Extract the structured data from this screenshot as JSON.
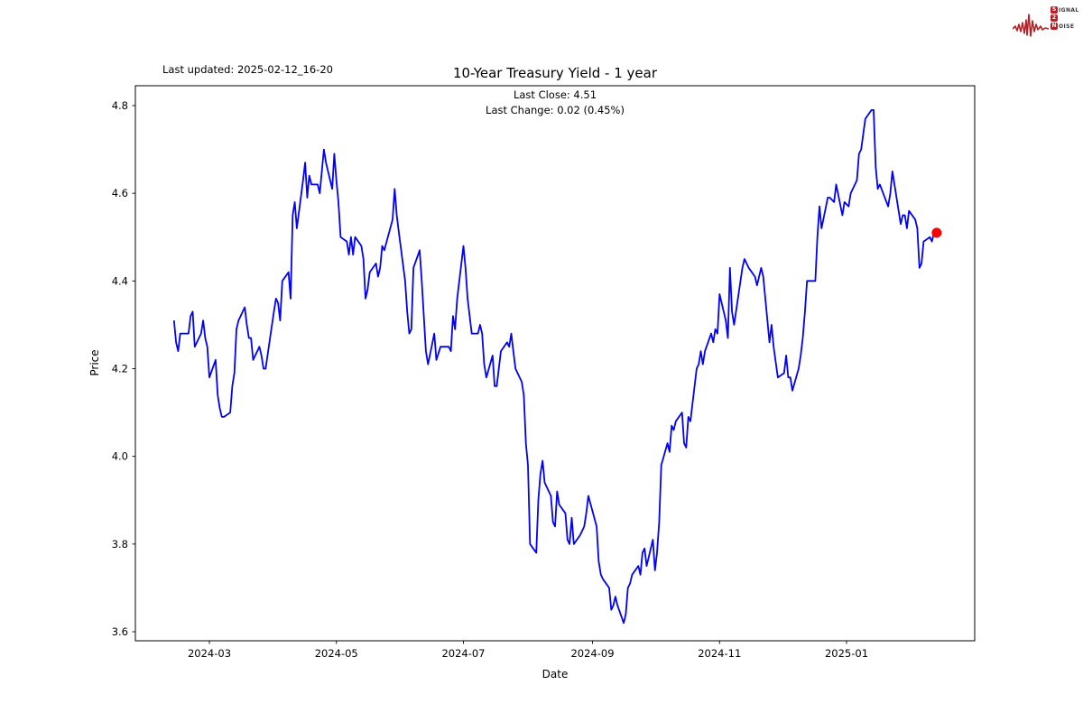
{
  "header": {
    "last_updated_label": "Last updated: 2025-02-12_16-20",
    "title": "10-Year Treasury Yield - 1 year",
    "subtitle_line1": "Last Close: 4.51",
    "subtitle_line2": "Last Change: 0.02 (0.45%)"
  },
  "logo": {
    "rows": [
      {
        "initial": "S",
        "rest": "IGNAL"
      },
      {
        "initial": "2",
        "rest": ""
      },
      {
        "initial": "N",
        "rest": "OISE"
      }
    ],
    "accent_color": "#b91f25"
  },
  "chart_data": {
    "type": "line",
    "title": "10-Year Treasury Yield - 1 year",
    "xlabel": "Date",
    "ylabel": "Price",
    "grid": false,
    "legend": "none",
    "ylim": [
      3.58,
      4.85
    ],
    "y_ticks": [
      3.6,
      3.8,
      4.0,
      4.2,
      4.4,
      4.6,
      4.8
    ],
    "x_ticks": [
      {
        "label": "2024-03",
        "date": "2024-03-01"
      },
      {
        "label": "2024-05",
        "date": "2024-05-01"
      },
      {
        "label": "2024-07",
        "date": "2024-07-01"
      },
      {
        "label": "2024-09",
        "date": "2024-09-01"
      },
      {
        "label": "2024-11",
        "date": "2024-11-01"
      },
      {
        "label": "2025-01",
        "date": "2025-01-01"
      }
    ],
    "line_color": "#0000ff",
    "last_point_color": "#ff0000",
    "last_close": 4.51,
    "last_change": "0.02 (0.45%)",
    "series": [
      {
        "name": "10-Year Treasury Yield",
        "points": [
          [
            "2024-02-13",
            4.31
          ],
          [
            "2024-02-14",
            4.26
          ],
          [
            "2024-02-15",
            4.24
          ],
          [
            "2024-02-16",
            4.28
          ],
          [
            "2024-02-20",
            4.28
          ],
          [
            "2024-02-21",
            4.32
          ],
          [
            "2024-02-22",
            4.33
          ],
          [
            "2024-02-23",
            4.25
          ],
          [
            "2024-02-26",
            4.28
          ],
          [
            "2024-02-27",
            4.31
          ],
          [
            "2024-02-28",
            4.27
          ],
          [
            "2024-02-29",
            4.25
          ],
          [
            "2024-03-01",
            4.18
          ],
          [
            "2024-03-04",
            4.22
          ],
          [
            "2024-03-05",
            4.14
          ],
          [
            "2024-03-06",
            4.11
          ],
          [
            "2024-03-07",
            4.09
          ],
          [
            "2024-03-08",
            4.09
          ],
          [
            "2024-03-11",
            4.1
          ],
          [
            "2024-03-12",
            4.16
          ],
          [
            "2024-03-13",
            4.19
          ],
          [
            "2024-03-14",
            4.29
          ],
          [
            "2024-03-15",
            4.31
          ],
          [
            "2024-03-18",
            4.34
          ],
          [
            "2024-03-19",
            4.3
          ],
          [
            "2024-03-20",
            4.27
          ],
          [
            "2024-03-21",
            4.27
          ],
          [
            "2024-03-22",
            4.22
          ],
          [
            "2024-03-25",
            4.25
          ],
          [
            "2024-03-26",
            4.23
          ],
          [
            "2024-03-27",
            4.2
          ],
          [
            "2024-03-28",
            4.2
          ],
          [
            "2024-04-01",
            4.33
          ],
          [
            "2024-04-02",
            4.36
          ],
          [
            "2024-04-03",
            4.35
          ],
          [
            "2024-04-04",
            4.31
          ],
          [
            "2024-04-05",
            4.4
          ],
          [
            "2024-04-08",
            4.42
          ],
          [
            "2024-04-09",
            4.36
          ],
          [
            "2024-04-10",
            4.55
          ],
          [
            "2024-04-11",
            4.58
          ],
          [
            "2024-04-12",
            4.52
          ],
          [
            "2024-04-15",
            4.63
          ],
          [
            "2024-04-16",
            4.67
          ],
          [
            "2024-04-17",
            4.59
          ],
          [
            "2024-04-18",
            4.64
          ],
          [
            "2024-04-19",
            4.62
          ],
          [
            "2024-04-22",
            4.62
          ],
          [
            "2024-04-23",
            4.6
          ],
          [
            "2024-04-24",
            4.65
          ],
          [
            "2024-04-25",
            4.7
          ],
          [
            "2024-04-26",
            4.67
          ],
          [
            "2024-04-29",
            4.61
          ],
          [
            "2024-04-30",
            4.69
          ],
          [
            "2024-05-01",
            4.63
          ],
          [
            "2024-05-02",
            4.58
          ],
          [
            "2024-05-03",
            4.5
          ],
          [
            "2024-05-06",
            4.49
          ],
          [
            "2024-05-07",
            4.46
          ],
          [
            "2024-05-08",
            4.5
          ],
          [
            "2024-05-09",
            4.46
          ],
          [
            "2024-05-10",
            4.5
          ],
          [
            "2024-05-13",
            4.48
          ],
          [
            "2024-05-14",
            4.45
          ],
          [
            "2024-05-15",
            4.36
          ],
          [
            "2024-05-16",
            4.38
          ],
          [
            "2024-05-17",
            4.42
          ],
          [
            "2024-05-20",
            4.44
          ],
          [
            "2024-05-21",
            4.41
          ],
          [
            "2024-05-22",
            4.43
          ],
          [
            "2024-05-23",
            4.48
          ],
          [
            "2024-05-24",
            4.47
          ],
          [
            "2024-05-28",
            4.54
          ],
          [
            "2024-05-29",
            4.61
          ],
          [
            "2024-05-30",
            4.55
          ],
          [
            "2024-05-31",
            4.51
          ],
          [
            "2024-06-03",
            4.4
          ],
          [
            "2024-06-04",
            4.33
          ],
          [
            "2024-06-05",
            4.28
          ],
          [
            "2024-06-06",
            4.29
          ],
          [
            "2024-06-07",
            4.43
          ],
          [
            "2024-06-10",
            4.47
          ],
          [
            "2024-06-11",
            4.4
          ],
          [
            "2024-06-12",
            4.32
          ],
          [
            "2024-06-13",
            4.24
          ],
          [
            "2024-06-14",
            4.21
          ],
          [
            "2024-06-17",
            4.28
          ],
          [
            "2024-06-18",
            4.22
          ],
          [
            "2024-06-20",
            4.25
          ],
          [
            "2024-06-21",
            4.25
          ],
          [
            "2024-06-24",
            4.25
          ],
          [
            "2024-06-25",
            4.24
          ],
          [
            "2024-06-26",
            4.32
          ],
          [
            "2024-06-27",
            4.29
          ],
          [
            "2024-06-28",
            4.36
          ],
          [
            "2024-07-01",
            4.48
          ],
          [
            "2024-07-02",
            4.43
          ],
          [
            "2024-07-03",
            4.36
          ],
          [
            "2024-07-05",
            4.28
          ],
          [
            "2024-07-08",
            4.28
          ],
          [
            "2024-07-09",
            4.3
          ],
          [
            "2024-07-10",
            4.28
          ],
          [
            "2024-07-11",
            4.21
          ],
          [
            "2024-07-12",
            4.18
          ],
          [
            "2024-07-15",
            4.23
          ],
          [
            "2024-07-16",
            4.16
          ],
          [
            "2024-07-17",
            4.16
          ],
          [
            "2024-07-18",
            4.2
          ],
          [
            "2024-07-19",
            4.24
          ],
          [
            "2024-07-22",
            4.26
          ],
          [
            "2024-07-23",
            4.25
          ],
          [
            "2024-07-24",
            4.28
          ],
          [
            "2024-07-25",
            4.24
          ],
          [
            "2024-07-26",
            4.2
          ],
          [
            "2024-07-29",
            4.17
          ],
          [
            "2024-07-30",
            4.14
          ],
          [
            "2024-07-31",
            4.03
          ],
          [
            "2024-08-01",
            3.98
          ],
          [
            "2024-08-02",
            3.8
          ],
          [
            "2024-08-05",
            3.78
          ],
          [
            "2024-08-06",
            3.9
          ],
          [
            "2024-08-07",
            3.96
          ],
          [
            "2024-08-08",
            3.99
          ],
          [
            "2024-08-09",
            3.94
          ],
          [
            "2024-08-12",
            3.91
          ],
          [
            "2024-08-13",
            3.85
          ],
          [
            "2024-08-14",
            3.84
          ],
          [
            "2024-08-15",
            3.92
          ],
          [
            "2024-08-16",
            3.89
          ],
          [
            "2024-08-19",
            3.87
          ],
          [
            "2024-08-20",
            3.81
          ],
          [
            "2024-08-21",
            3.8
          ],
          [
            "2024-08-22",
            3.86
          ],
          [
            "2024-08-23",
            3.8
          ],
          [
            "2024-08-26",
            3.82
          ],
          [
            "2024-08-27",
            3.83
          ],
          [
            "2024-08-28",
            3.84
          ],
          [
            "2024-08-29",
            3.87
          ],
          [
            "2024-08-30",
            3.91
          ],
          [
            "2024-09-03",
            3.84
          ],
          [
            "2024-09-04",
            3.76
          ],
          [
            "2024-09-05",
            3.73
          ],
          [
            "2024-09-06",
            3.72
          ],
          [
            "2024-09-09",
            3.7
          ],
          [
            "2024-09-10",
            3.65
          ],
          [
            "2024-09-11",
            3.66
          ],
          [
            "2024-09-12",
            3.68
          ],
          [
            "2024-09-13",
            3.66
          ],
          [
            "2024-09-16",
            3.62
          ],
          [
            "2024-09-17",
            3.64
          ],
          [
            "2024-09-18",
            3.7
          ],
          [
            "2024-09-19",
            3.71
          ],
          [
            "2024-09-20",
            3.73
          ],
          [
            "2024-09-23",
            3.75
          ],
          [
            "2024-09-24",
            3.73
          ],
          [
            "2024-09-25",
            3.78
          ],
          [
            "2024-09-26",
            3.79
          ],
          [
            "2024-09-27",
            3.75
          ],
          [
            "2024-09-30",
            3.81
          ],
          [
            "2024-10-01",
            3.74
          ],
          [
            "2024-10-02",
            3.78
          ],
          [
            "2024-10-03",
            3.85
          ],
          [
            "2024-10-04",
            3.98
          ],
          [
            "2024-10-07",
            4.03
          ],
          [
            "2024-10-08",
            4.01
          ],
          [
            "2024-10-09",
            4.07
          ],
          [
            "2024-10-10",
            4.06
          ],
          [
            "2024-10-11",
            4.08
          ],
          [
            "2024-10-14",
            4.1
          ],
          [
            "2024-10-15",
            4.03
          ],
          [
            "2024-10-16",
            4.02
          ],
          [
            "2024-10-17",
            4.09
          ],
          [
            "2024-10-18",
            4.08
          ],
          [
            "2024-10-21",
            4.2
          ],
          [
            "2024-10-22",
            4.21
          ],
          [
            "2024-10-23",
            4.24
          ],
          [
            "2024-10-24",
            4.21
          ],
          [
            "2024-10-25",
            4.24
          ],
          [
            "2024-10-28",
            4.28
          ],
          [
            "2024-10-29",
            4.26
          ],
          [
            "2024-10-30",
            4.29
          ],
          [
            "2024-10-31",
            4.28
          ],
          [
            "2024-11-01",
            4.37
          ],
          [
            "2024-11-04",
            4.31
          ],
          [
            "2024-11-05",
            4.27
          ],
          [
            "2024-11-06",
            4.43
          ],
          [
            "2024-11-07",
            4.33
          ],
          [
            "2024-11-08",
            4.3
          ],
          [
            "2024-11-12",
            4.43
          ],
          [
            "2024-11-13",
            4.45
          ],
          [
            "2024-11-14",
            4.44
          ],
          [
            "2024-11-15",
            4.43
          ],
          [
            "2024-11-18",
            4.41
          ],
          [
            "2024-11-19",
            4.39
          ],
          [
            "2024-11-20",
            4.41
          ],
          [
            "2024-11-21",
            4.43
          ],
          [
            "2024-11-22",
            4.41
          ],
          [
            "2024-11-25",
            4.26
          ],
          [
            "2024-11-26",
            4.3
          ],
          [
            "2024-11-27",
            4.25
          ],
          [
            "2024-11-29",
            4.18
          ],
          [
            "2024-12-02",
            4.19
          ],
          [
            "2024-12-03",
            4.23
          ],
          [
            "2024-12-04",
            4.18
          ],
          [
            "2024-12-05",
            4.18
          ],
          [
            "2024-12-06",
            4.15
          ],
          [
            "2024-12-09",
            4.2
          ],
          [
            "2024-12-10",
            4.23
          ],
          [
            "2024-12-11",
            4.27
          ],
          [
            "2024-12-12",
            4.33
          ],
          [
            "2024-12-13",
            4.4
          ],
          [
            "2024-12-16",
            4.4
          ],
          [
            "2024-12-17",
            4.4
          ],
          [
            "2024-12-18",
            4.5
          ],
          [
            "2024-12-19",
            4.57
          ],
          [
            "2024-12-20",
            4.52
          ],
          [
            "2024-12-23",
            4.59
          ],
          [
            "2024-12-24",
            4.59
          ],
          [
            "2024-12-26",
            4.58
          ],
          [
            "2024-12-27",
            4.62
          ],
          [
            "2024-12-30",
            4.55
          ],
          [
            "2024-12-31",
            4.58
          ],
          [
            "2025-01-02",
            4.57
          ],
          [
            "2025-01-03",
            4.6
          ],
          [
            "2025-01-06",
            4.63
          ],
          [
            "2025-01-07",
            4.69
          ],
          [
            "2025-01-08",
            4.7
          ],
          [
            "2025-01-10",
            4.77
          ],
          [
            "2025-01-13",
            4.79
          ],
          [
            "2025-01-14",
            4.79
          ],
          [
            "2025-01-15",
            4.66
          ],
          [
            "2025-01-16",
            4.61
          ],
          [
            "2025-01-17",
            4.62
          ],
          [
            "2025-01-21",
            4.57
          ],
          [
            "2025-01-22",
            4.6
          ],
          [
            "2025-01-23",
            4.65
          ],
          [
            "2025-01-24",
            4.62
          ],
          [
            "2025-01-27",
            4.53
          ],
          [
            "2025-01-28",
            4.55
          ],
          [
            "2025-01-29",
            4.55
          ],
          [
            "2025-01-30",
            4.52
          ],
          [
            "2025-01-31",
            4.56
          ],
          [
            "2025-02-03",
            4.54
          ],
          [
            "2025-02-04",
            4.52
          ],
          [
            "2025-02-05",
            4.43
          ],
          [
            "2025-02-06",
            4.44
          ],
          [
            "2025-02-07",
            4.49
          ],
          [
            "2025-02-10",
            4.5
          ],
          [
            "2025-02-11",
            4.49
          ],
          [
            "2025-02-12",
            4.51
          ]
        ]
      }
    ]
  }
}
